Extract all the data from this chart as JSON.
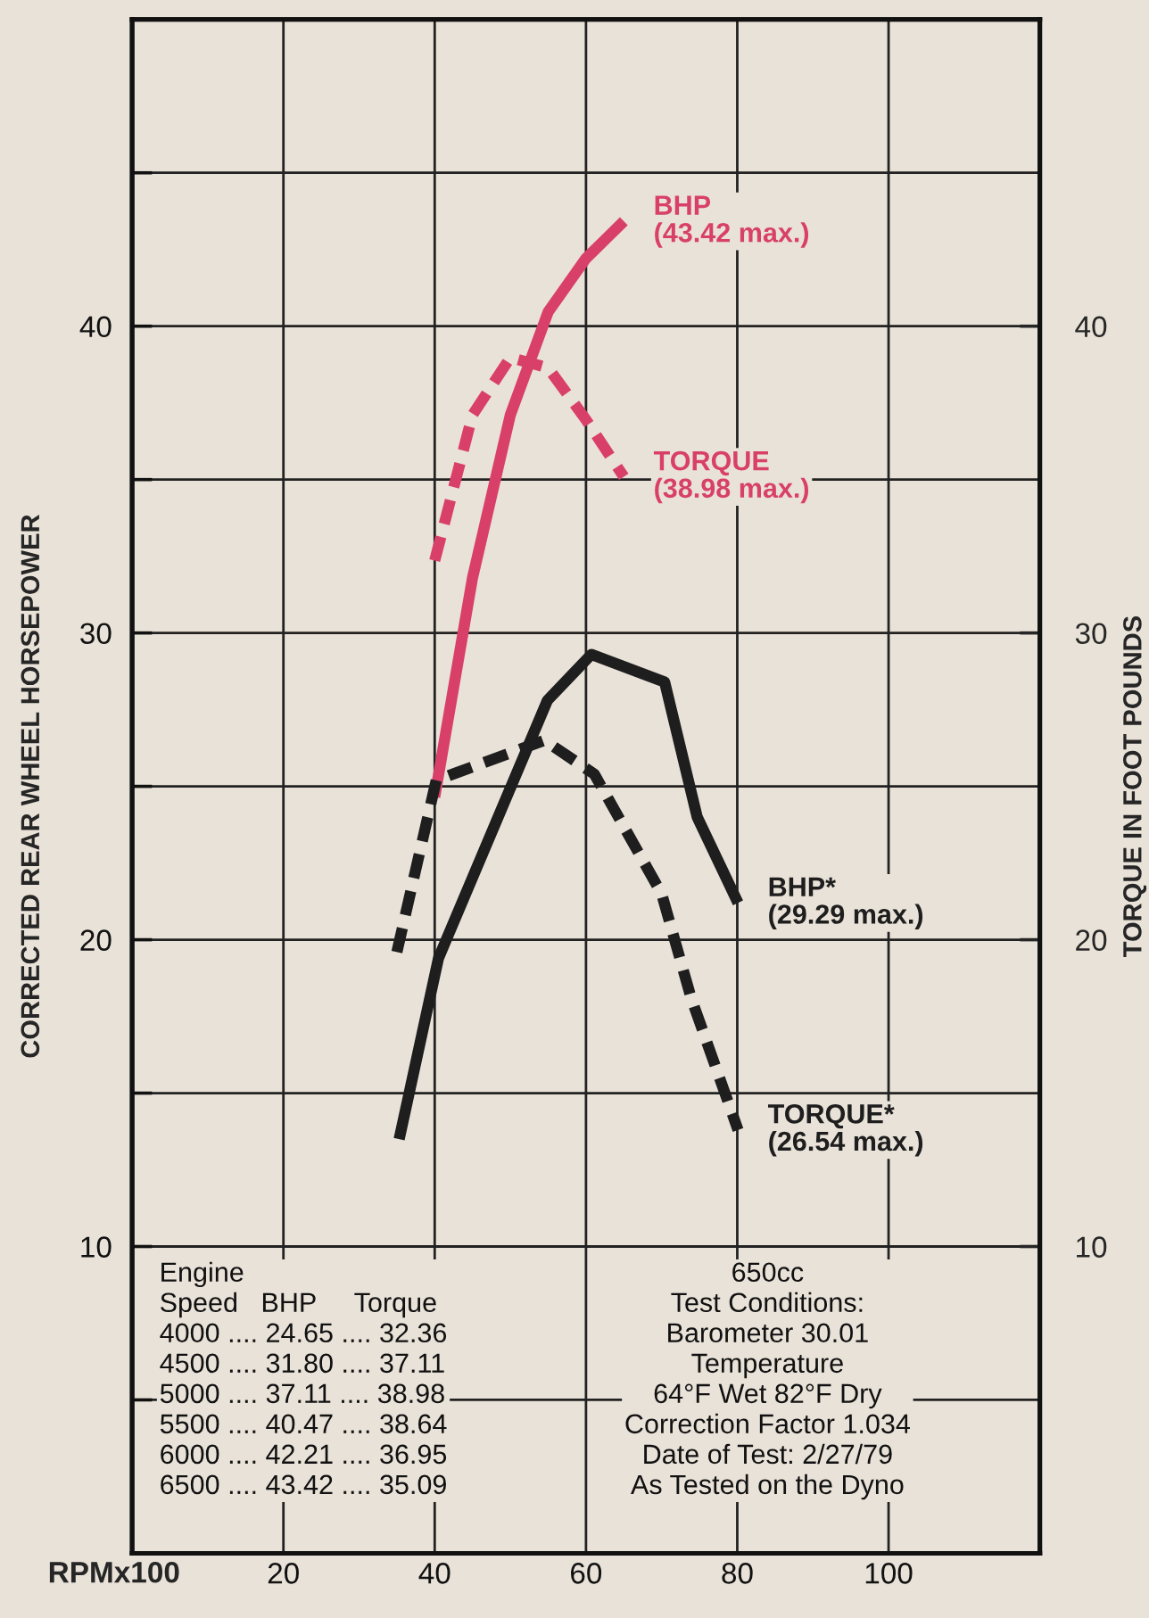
{
  "chart_data": {
    "type": "line",
    "xlabel": "RPMx100",
    "ylabel": "CORRECTED REAR WHEEL HORSEPOWER",
    "y2label": "TORQUE IN FOOT POUNDS",
    "xlim": [
      0,
      120
    ],
    "xticks": [
      20,
      40,
      60,
      80,
      100
    ],
    "ylim": [
      0,
      50
    ],
    "yticks": [
      {
        "value": 5,
        "label": null
      },
      10,
      {
        "value": 15,
        "label": null
      },
      20,
      {
        "value": 25,
        "label": null
      },
      30,
      {
        "value": 35,
        "label": null
      },
      40,
      {
        "value": 45,
        "label": null
      }
    ],
    "y2lim": [
      0,
      50
    ],
    "y2ticks": [
      10,
      20,
      30,
      40
    ],
    "grid": true,
    "legend": false,
    "marker": "none",
    "series": [
      {
        "name": "BHP\n(43.42 max.)",
        "color": "#d8406a",
        "line_style": "solid",
        "x": [
          40,
          45,
          50,
          55,
          60,
          65
        ],
        "values": [
          24.65,
          31.8,
          37.11,
          40.47,
          42.21,
          43.42
        ]
      },
      {
        "name": "TORQUE\n(38.98 max.)",
        "color": "#d8406a",
        "line_style": "dashed",
        "x": [
          40,
          45,
          50,
          55,
          60,
          65
        ],
        "values": [
          32.36,
          37.11,
          38.98,
          38.64,
          36.95,
          35.09
        ]
      },
      {
        "name": "BHP*\n(29.29 max.)",
        "color": "#1e1e1e",
        "line_style": "solid",
        "x": [
          35.3,
          40.5,
          54.9,
          60.7,
          70.4,
          74.7,
          80.1
        ],
        "values": [
          13.5,
          19.4,
          27.8,
          29.3,
          28.4,
          24.0,
          21.2
        ]
      },
      {
        "name": "TORQUE*\n(26.54 max.)",
        "color": "#1e1e1e",
        "line_style": "dashed",
        "x": [
          35,
          40.2,
          54.5,
          61.1,
          70,
          73.9,
          80.1
        ],
        "values": [
          19.6,
          25.2,
          26.5,
          25.4,
          21.5,
          18.1,
          13.8
        ]
      }
    ],
    "annotations": [
      "Engine\nSpeed   BHP     Torque\n4000 .... 24.65 .... 32.36\n4500 .... 31.80 .... 37.11\n5000 .... 37.11 .... 38.98\n5500 .... 40.47 .... 38.64\n6000 .... 42.21 .... 36.95\n6500 .... 43.42 .... 35.09",
      "650cc\nTest Conditions:\nBarometer 30.01\nTemperature\n64°F Wet 82°F Dry\nCorrection Factor 1.034\nDate of Test: 2/27/79\nAs Tested on the Dyno"
    ]
  }
}
